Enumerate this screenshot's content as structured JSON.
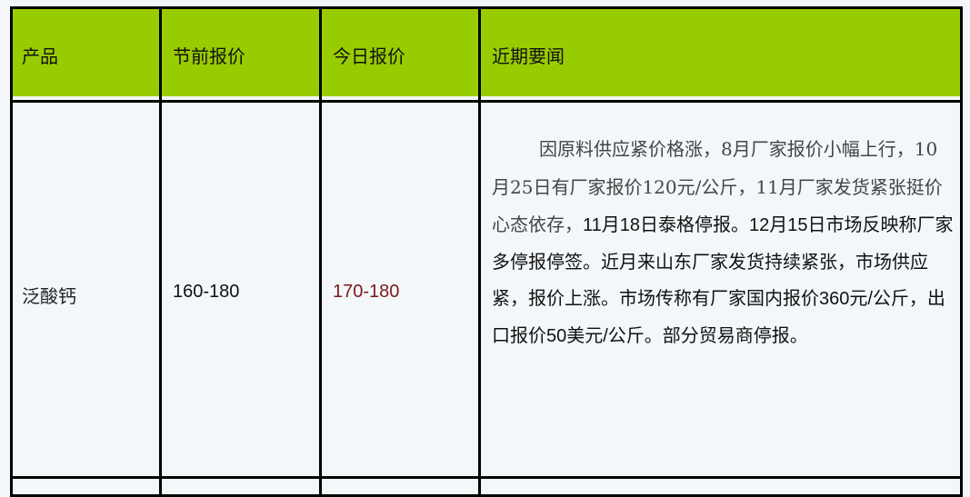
{
  "table": {
    "headers": [
      "产品",
      "节前报价",
      "今日报价",
      "近期要闻"
    ],
    "rows": [
      {
        "product": "泛酸钙",
        "pre_holiday_price": "160-180",
        "today_price": "170-180",
        "news_part1": "因原料供应紧价格涨，8月厂家报价小幅上行，10月25日有厂家报价120元/公斤，11月厂家发货紧张挺价心态依存，",
        "news_part2": "11月18日泰格停报。12月15日市场反映称厂家多停报停签。近月来山东厂家发货持续紧张，市场供应紧，报价上涨。市场传称有厂家国内报价360元/公斤，出口报价50美元/公斤。部分贸易商停报。"
      }
    ]
  },
  "colors": {
    "header_bg": "#99cc00",
    "today_price": "#7a1a1a",
    "page_bg": "#f3f7fa"
  }
}
